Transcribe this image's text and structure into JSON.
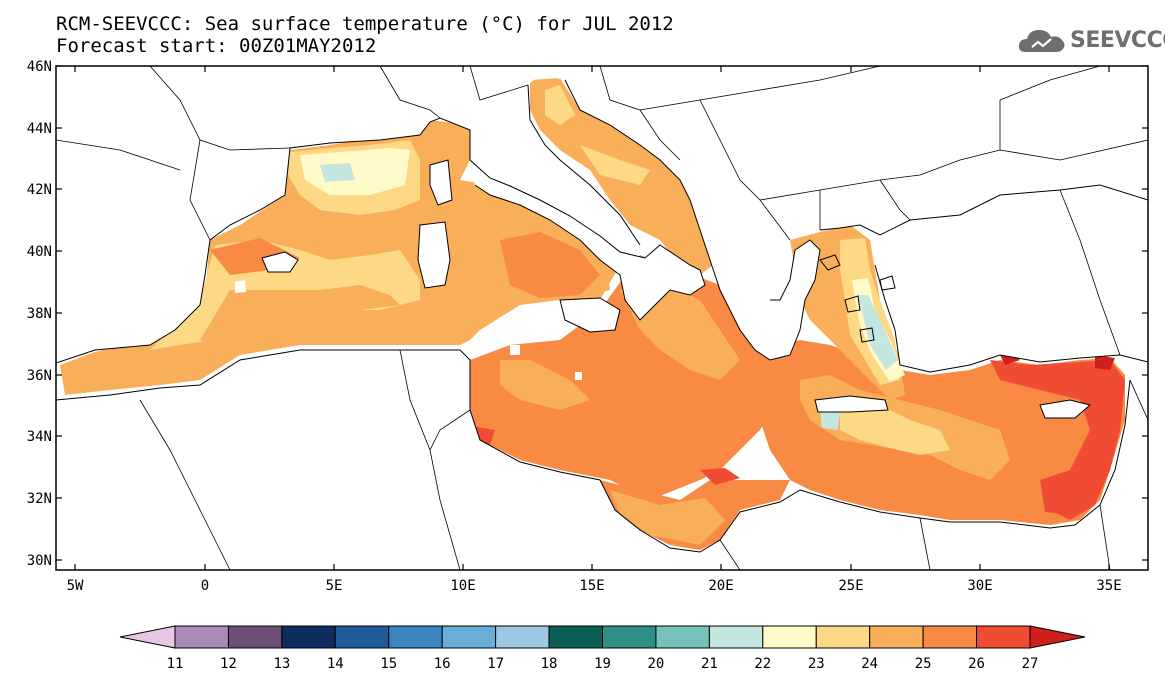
{
  "title": {
    "line1": "RCM-SEEVCCC: Sea surface temperature (°C) for JUL 2012",
    "line2": "Forecast start: 00Z01MAY2012"
  },
  "logo": {
    "text": "SEEVCCC",
    "icon": "cloud-icon"
  },
  "axes": {
    "lat_labels": [
      "46N",
      "44N",
      "42N",
      "40N",
      "38N",
      "36N",
      "34N",
      "32N",
      "30N"
    ],
    "lon_labels": [
      "5W",
      "0",
      "5E",
      "10E",
      "15E",
      "20E",
      "25E",
      "30E",
      "35E"
    ]
  },
  "colorbar": {
    "labels": [
      "11",
      "12",
      "13",
      "14",
      "15",
      "16",
      "17",
      "18",
      "19",
      "20",
      "21",
      "22",
      "23",
      "24",
      "25",
      "26",
      "27"
    ],
    "colors": [
      "#e8c6e6",
      "#a98ab8",
      "#6b4f75",
      "#0d2c60",
      "#1f5c97",
      "#3b86c0",
      "#6aaed8",
      "#9dc8e2",
      "#0b5e52",
      "#2e8f85",
      "#76c2b8",
      "#c4e6e0",
      "#fffac8",
      "#fdd985",
      "#f9ae5a",
      "#f88a43",
      "#f04c34",
      "#d0201e"
    ]
  },
  "map": {
    "region": "Mediterranean Sea",
    "dominant_levels": {
      "western_basin": "23-25",
      "gulf_of_lion": "22-23",
      "central_basin": "25-26",
      "aegean": "21-24",
      "levantine": "26-27"
    }
  }
}
